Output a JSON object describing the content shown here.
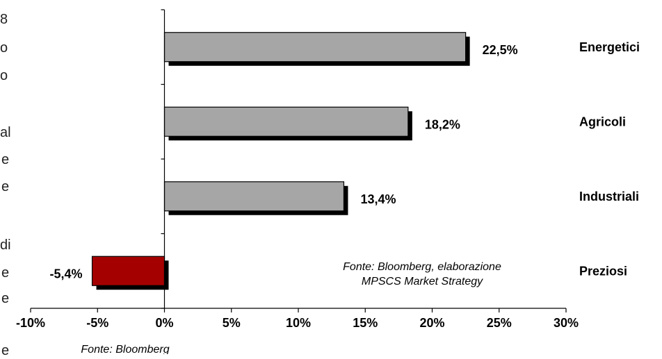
{
  "left_text_fragments": [
    "8",
    "o",
    "o",
    "al",
    "e",
    "e",
    "di",
    "e",
    "e",
    "e"
  ],
  "chart_data": {
    "type": "bar",
    "orientation": "horizontal",
    "categories": [
      "Energetici",
      "Agricoli",
      "Industriali",
      "Preziosi"
    ],
    "values": [
      22.5,
      18.2,
      13.4,
      -5.4
    ],
    "value_labels": [
      "22,5%",
      "18,2%",
      "13,4%",
      "-5,4%"
    ],
    "xlim": [
      -10,
      30
    ],
    "xticks": [
      -10,
      -5,
      0,
      5,
      10,
      15,
      20,
      25,
      30
    ],
    "xtick_labels": [
      "-10%",
      "-5%",
      "0%",
      "5%",
      "10%",
      "15%",
      "20%",
      "25%",
      "30%"
    ],
    "grid": false,
    "colors": {
      "positive": "#a6a6a6",
      "negative": "#a50000",
      "shadow": "#000000"
    },
    "annotation": [
      "Fonte: Bloomberg, elaborazione",
      "MPSCS Market  Strategy"
    ],
    "source_note": "Fonte: Bloomberg"
  }
}
